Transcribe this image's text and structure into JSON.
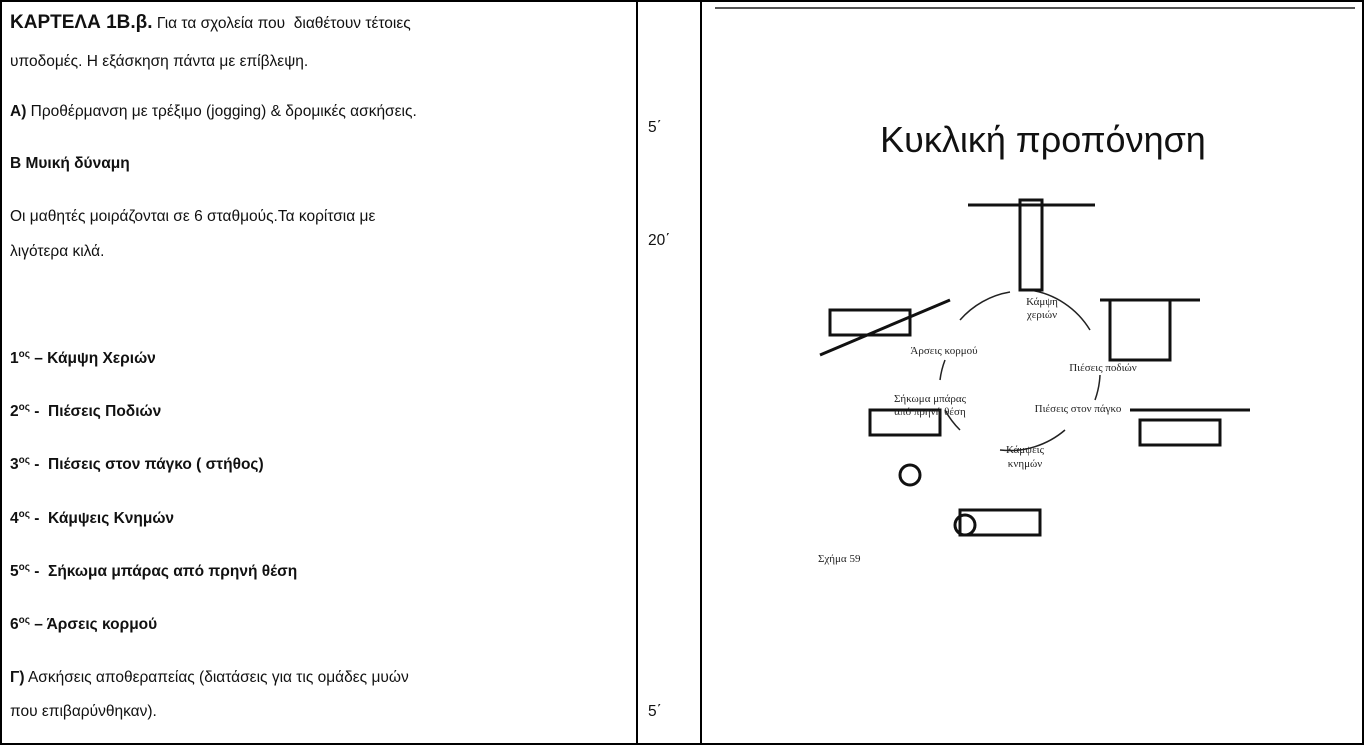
{
  "card": {
    "label": "ΚΑΡΤΕΛΑ 1Β.β.",
    "intro": [
      "Για τα σχολεία που  διαθέτουν τέτοιες",
      "υποδομές. Η εξάσκηση πάντα με επίβλεψη."
    ]
  },
  "warmup": {
    "label": "Α)",
    "text": "Προθέρμανση με τρέξιμο (jogging) & δρομικές ασκήσεις."
  },
  "strength": {
    "heading": "Β Μυική δύναμη",
    "text": [
      "Οι μαθητές μοιράζονται σε 6 σταθμούς.Τα κορίτσια με",
      "λιγότερα κιλά."
    ]
  },
  "stations": [
    {
      "num": "1",
      "sup": "ος",
      "text": " – Κάμψη Χεριών"
    },
    {
      "num": "2",
      "sup": "ος",
      "text": " -  Πιέσεις Ποδιών"
    },
    {
      "num": "3",
      "sup": "ος",
      "text": " -  Πιέσεις στον πάγκο ( στήθος)"
    },
    {
      "num": "4",
      "sup": "ος",
      "text": " -  Κάμψεις Κνημών"
    },
    {
      "num": "5",
      "sup": "ος",
      "text": " -  Σήκωμα μπάρας από πρηνή θέση"
    },
    {
      "num": "6",
      "sup": "ος",
      "text": " – Άρσεις κορμού"
    }
  ],
  "cooldown": {
    "label": "Γ)",
    "text": [
      "Ασκήσεις αποθεραπείας (διατάσεις για τις ομάδες μυών",
      "που επιβαρύνθηκαν)."
    ]
  },
  "durations": [
    "5΄",
    "20΄",
    "5΄"
  ],
  "figure": {
    "title": "Κυκλική προπόνηση",
    "labels": [
      "Κάμψη",
      "χεριών",
      "Πιέσεις ποδιών",
      "Πιέσεις στον πάγκο",
      "Κάμψεις",
      "κνημών",
      "Σήκωμα μπάρας",
      "από πρηνή θέση",
      "Άρσεις κορμού"
    ],
    "caption": "Σχήμα 59"
  }
}
